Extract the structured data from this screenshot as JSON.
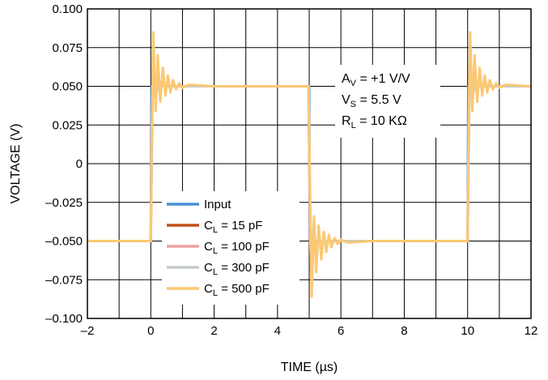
{
  "chart_data": {
    "type": "line",
    "xlabel": "TIME (µs)",
    "ylabel": "VOLTAGE (V)",
    "xlim": [
      -2,
      12
    ],
    "ylim": [
      -0.1,
      0.1
    ],
    "x_ticks": [
      -2,
      0,
      2,
      4,
      6,
      8,
      10,
      12
    ],
    "x_tick_labels": [
      "–2",
      "0",
      "2",
      "4",
      "6",
      "8",
      "10",
      "12"
    ],
    "y_ticks": [
      0.1,
      0.075,
      0.05,
      0.025,
      0,
      -0.025,
      -0.05,
      -0.075,
      -0.1
    ],
    "y_tick_labels": [
      "0.100",
      "0.075",
      "0.050",
      "0.025",
      "0",
      "–0.025",
      "–0.050",
      "–0.075",
      "–0.100"
    ],
    "x_minor_step": 1,
    "grid": true,
    "legend_position": "bottom-left",
    "series": [
      {
        "label_main": "Input",
        "label_sub": "",
        "label_rest": "",
        "color": "#4a90d9",
        "x": [
          -2,
          0,
          0.02,
          4.98,
          5,
          5.02,
          9.98,
          10,
          10.02,
          12
        ],
        "y": [
          -0.05,
          -0.05,
          0.05,
          0.05,
          0.05,
          -0.05,
          -0.05,
          -0.05,
          0.05,
          0.05
        ]
      },
      {
        "label_main": "C",
        "label_sub": "L",
        "label_rest": " = 15 pF",
        "color": "#c0501a",
        "x": [
          -2,
          0,
          0.05,
          0.1,
          4.98,
          5.03,
          5.08,
          10,
          10.05,
          10.1,
          12
        ],
        "y": [
          -0.05,
          -0.05,
          0.052,
          0.05,
          0.05,
          -0.052,
          -0.05,
          -0.05,
          0.052,
          0.05,
          0.05
        ]
      },
      {
        "label_main": "C",
        "label_sub": "L",
        "label_rest": " = 100 pF",
        "color": "#f0a0a0",
        "x": [
          -2,
          0,
          0.06,
          0.12,
          0.2,
          4.98,
          5.04,
          5.1,
          5.18,
          10,
          10.06,
          10.12,
          10.2,
          12
        ],
        "y": [
          -0.05,
          -0.05,
          0.056,
          0.048,
          0.05,
          0.05,
          -0.056,
          -0.048,
          -0.05,
          -0.05,
          0.056,
          0.048,
          0.05,
          0.05
        ]
      },
      {
        "label_main": "C",
        "label_sub": "L",
        "label_rest": " = 300 pF",
        "color": "#c4cacc",
        "x": [
          -2,
          0,
          0.07,
          0.15,
          0.25,
          0.35,
          4.98,
          5.05,
          5.13,
          5.23,
          5.33,
          10,
          10.07,
          10.15,
          10.25,
          10.35,
          12
        ],
        "y": [
          -0.05,
          -0.05,
          0.068,
          0.042,
          0.054,
          0.05,
          0.05,
          -0.068,
          -0.042,
          -0.054,
          -0.05,
          -0.05,
          0.068,
          0.042,
          0.054,
          0.05,
          0.05
        ]
      },
      {
        "label_main": "C",
        "label_sub": "L",
        "label_rest": " = 500 pF",
        "color": "#fcc873",
        "x": [
          -2,
          -1,
          0,
          0.03,
          0.08,
          0.15,
          0.22,
          0.3,
          0.38,
          0.46,
          0.54,
          0.62,
          0.7,
          0.8,
          0.9,
          1,
          1.2,
          2,
          3,
          4,
          4.95,
          4.98,
          5.03,
          5.08,
          5.15,
          5.22,
          5.3,
          5.38,
          5.46,
          5.54,
          5.62,
          5.7,
          5.8,
          5.9,
          6,
          6.2,
          7,
          8,
          9,
          9.98,
          10,
          10.03,
          10.08,
          10.15,
          10.22,
          10.3,
          10.38,
          10.46,
          10.54,
          10.62,
          10.7,
          10.8,
          10.9,
          11,
          11.2,
          12
        ],
        "y": [
          -0.05,
          -0.05,
          -0.05,
          0.02,
          0.085,
          0.034,
          0.07,
          0.04,
          0.062,
          0.044,
          0.057,
          0.046,
          0.054,
          0.048,
          0.052,
          0.049,
          0.051,
          0.05,
          0.05,
          0.05,
          0.05,
          0.05,
          -0.02,
          -0.086,
          -0.034,
          -0.07,
          -0.04,
          -0.062,
          -0.044,
          -0.057,
          -0.046,
          -0.054,
          -0.048,
          -0.052,
          -0.049,
          -0.051,
          -0.05,
          -0.05,
          -0.05,
          -0.05,
          -0.05,
          0.02,
          0.085,
          0.034,
          0.07,
          0.04,
          0.062,
          0.044,
          0.057,
          0.046,
          0.054,
          0.048,
          0.052,
          0.049,
          0.051,
          0.05
        ]
      }
    ],
    "annotations": [
      {
        "main": "A",
        "sub": "V",
        "rest": " = +1 V/V"
      },
      {
        "main": "V",
        "sub": "S",
        "rest": " = 5.5 V"
      },
      {
        "main": "R",
        "sub": "L",
        "rest": " = 10 KΩ"
      }
    ]
  }
}
